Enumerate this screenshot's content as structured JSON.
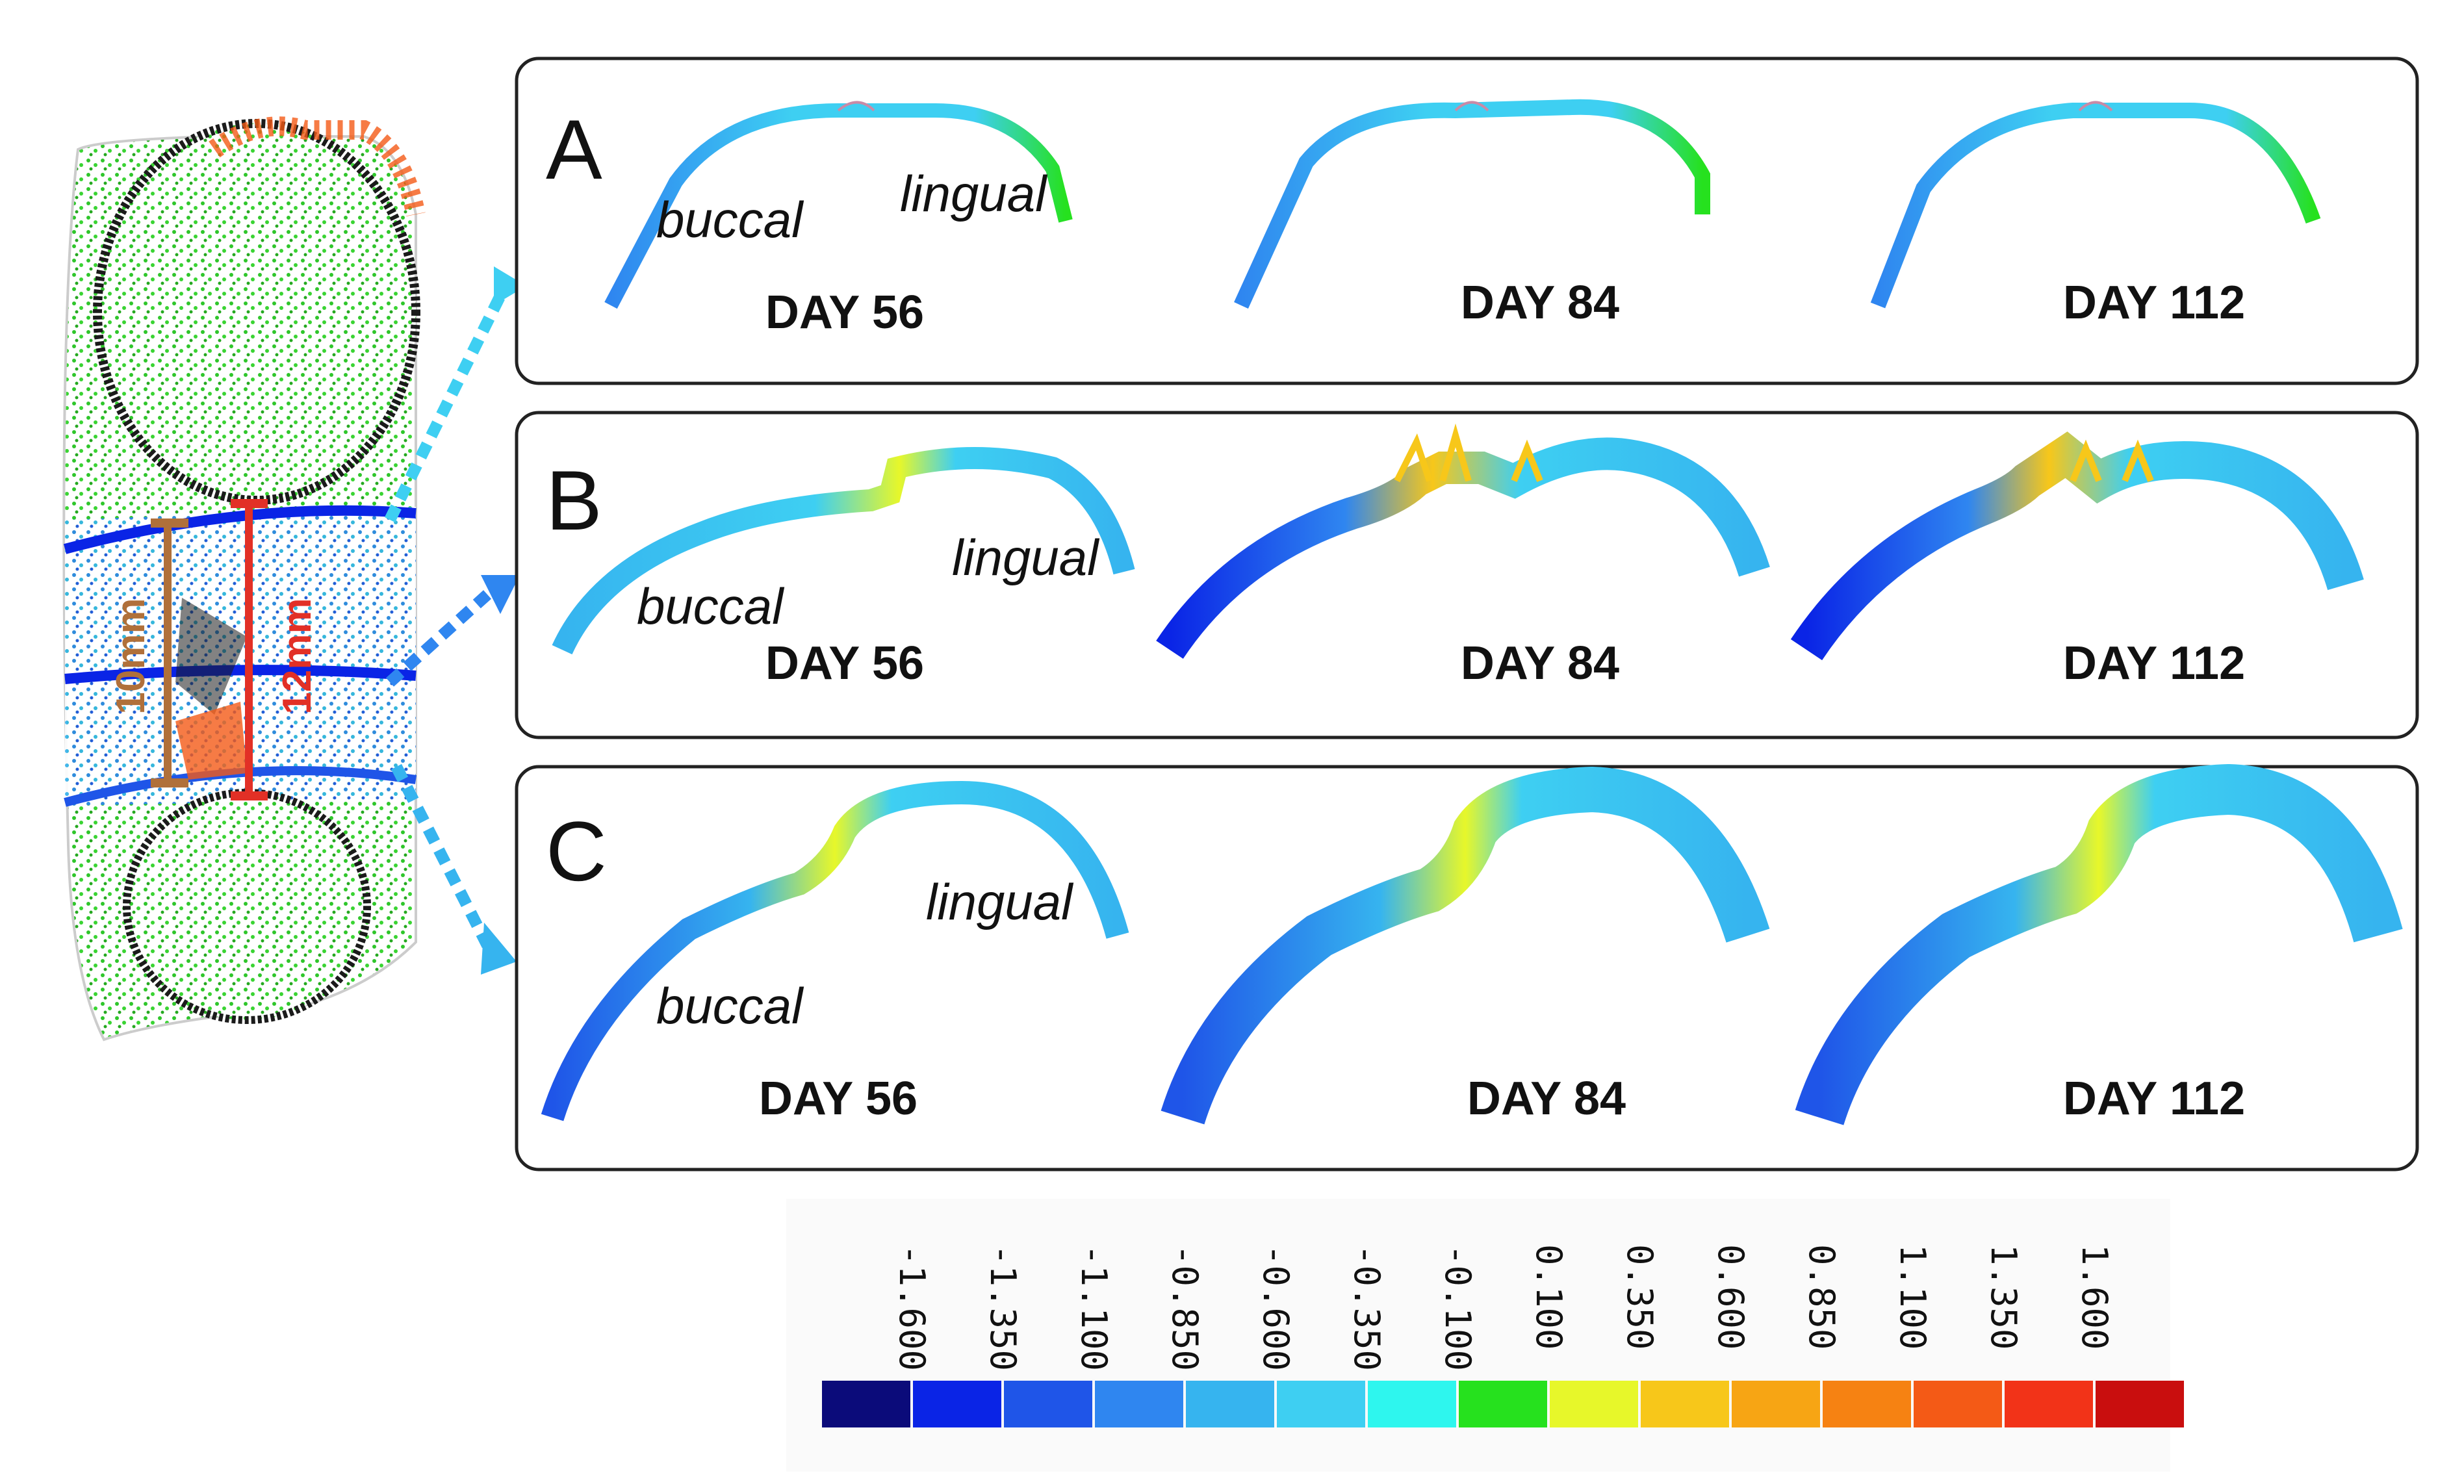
{
  "figure": {
    "panels": [
      {
        "letter": "A",
        "buccal": "buccal",
        "lingual": "lingual",
        "days": [
          "DAY 56",
          "DAY 84",
          "DAY 112"
        ]
      },
      {
        "letter": "B",
        "buccal": "buccal",
        "lingual": "lingual",
        "days": [
          "DAY 56",
          "DAY 84",
          "DAY 112"
        ]
      },
      {
        "letter": "C",
        "buccal": "buccal",
        "lingual": "lingual",
        "days": [
          "DAY 56",
          "DAY 84",
          "DAY 112"
        ]
      }
    ],
    "measurements": {
      "inner": "10mm",
      "outer": "12mm",
      "inner_color": "#b0703a",
      "outer_color": "#e23026"
    }
  },
  "colorbar": {
    "ticks": [
      "-1.600",
      "-1.350",
      "-1.100",
      "-0.850",
      "-0.600",
      "-0.350",
      "-0.100",
      "0.100",
      "0.350",
      "0.600",
      "0.850",
      "1.100",
      "1.350",
      "1.600"
    ],
    "colors": [
      "#0b0b7a",
      "#0a24e6",
      "#1f55e8",
      "#2f86f0",
      "#36b4ef",
      "#3ecff2",
      "#2ef6ee",
      "#26e11e",
      "#e7f72a",
      "#f7c71a",
      "#f7a514",
      "#f68212",
      "#f45a16",
      "#f23318",
      "#c90e0e"
    ]
  }
}
